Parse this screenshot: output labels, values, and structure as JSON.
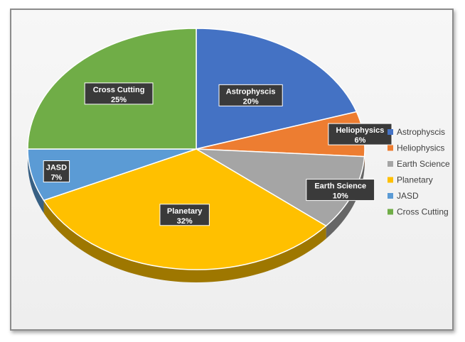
{
  "chart_data": {
    "type": "pie",
    "title": "",
    "categories": [
      "Astrophyscis",
      "Heliophysics",
      "Earth Science",
      "Planetary",
      "JASD",
      "Cross Cutting"
    ],
    "values": [
      20,
      6,
      10,
      32,
      7,
      25
    ],
    "data_labels": [
      "20%",
      "6%",
      "10%",
      "32%",
      "7%",
      "25%"
    ],
    "colors": [
      "#4472C4",
      "#ED7D31",
      "#A5A5A5",
      "#FFC000",
      "#5B9BD5",
      "#70AD47"
    ],
    "style": "3d",
    "legend_position": "right"
  }
}
